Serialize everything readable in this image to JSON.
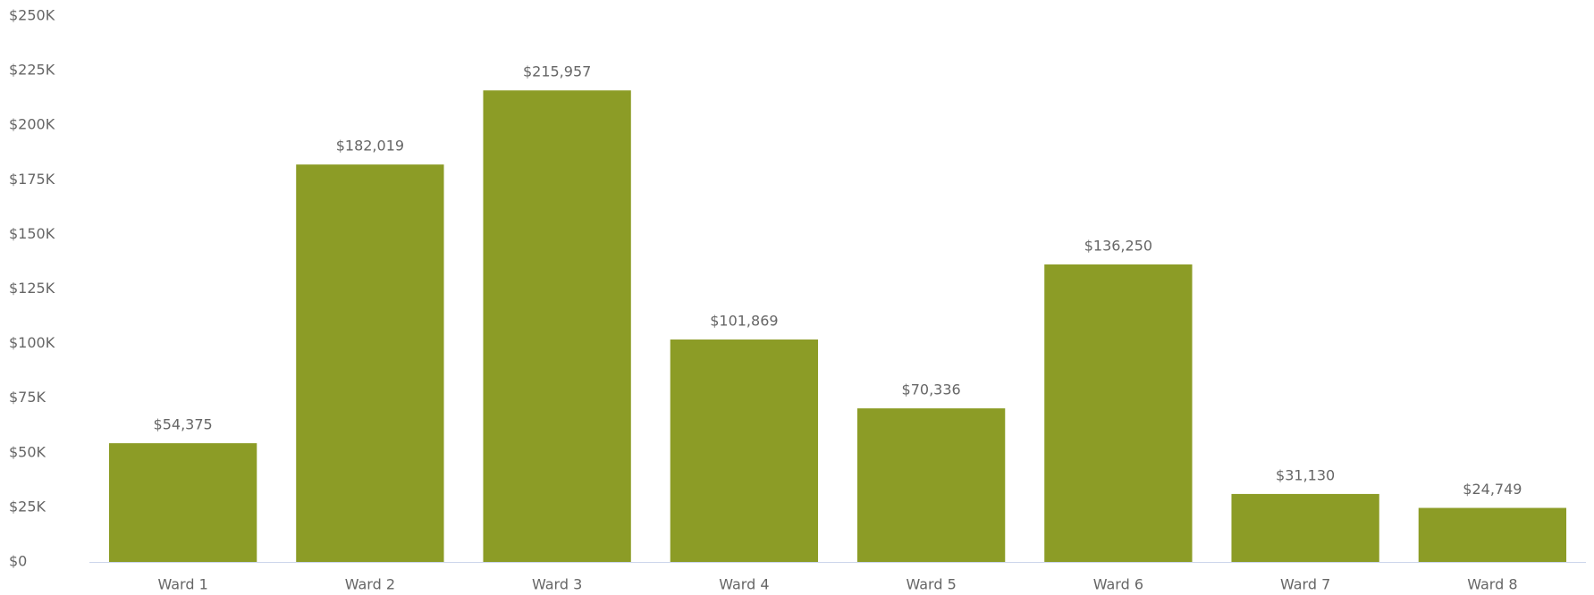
{
  "chart_data": {
    "type": "bar",
    "categories": [
      "Ward 1",
      "Ward 2",
      "Ward 3",
      "Ward 4",
      "Ward 5",
      "Ward 6",
      "Ward 7",
      "Ward 8"
    ],
    "values": [
      54375,
      182019,
      215957,
      101869,
      70336,
      136250,
      31130,
      24749
    ],
    "value_labels": [
      "$54,375",
      "$182,019",
      "$215,957",
      "$101,869",
      "$70,336",
      "$136,250",
      "$31,130",
      "$24,749"
    ],
    "color": "#8c9c26",
    "ylim": [
      0,
      250000
    ],
    "yticks": [
      {
        "value": 0,
        "label": "$0"
      },
      {
        "value": 25000,
        "label": "$25K"
      },
      {
        "value": 50000,
        "label": "$50K"
      },
      {
        "value": 75000,
        "label": "$75K"
      },
      {
        "value": 100000,
        "label": "$100K"
      },
      {
        "value": 125000,
        "label": "$125K"
      },
      {
        "value": 150000,
        "label": "$150K"
      },
      {
        "value": 175000,
        "label": "$175K"
      },
      {
        "value": 200000,
        "label": "$200K"
      },
      {
        "value": 225000,
        "label": "$225K"
      },
      {
        "value": 250000,
        "label": "$250K"
      }
    ],
    "grid": false
  }
}
